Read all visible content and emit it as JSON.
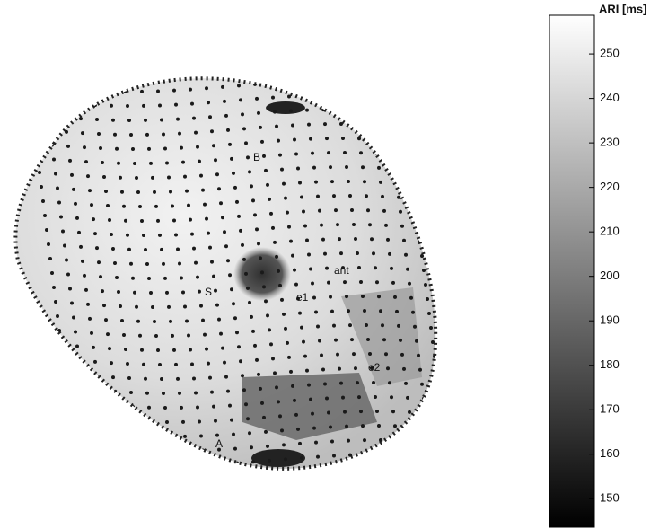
{
  "colorbar": {
    "label": "ARI [ms]",
    "lim": [
      143.6,
      258.7
    ],
    "ticks": [
      150,
      160,
      170,
      180,
      190,
      200,
      210,
      220,
      230,
      240,
      250
    ]
  },
  "labels": [
    "B",
    "S",
    "ant",
    "e1",
    "e2",
    "A"
  ]
}
